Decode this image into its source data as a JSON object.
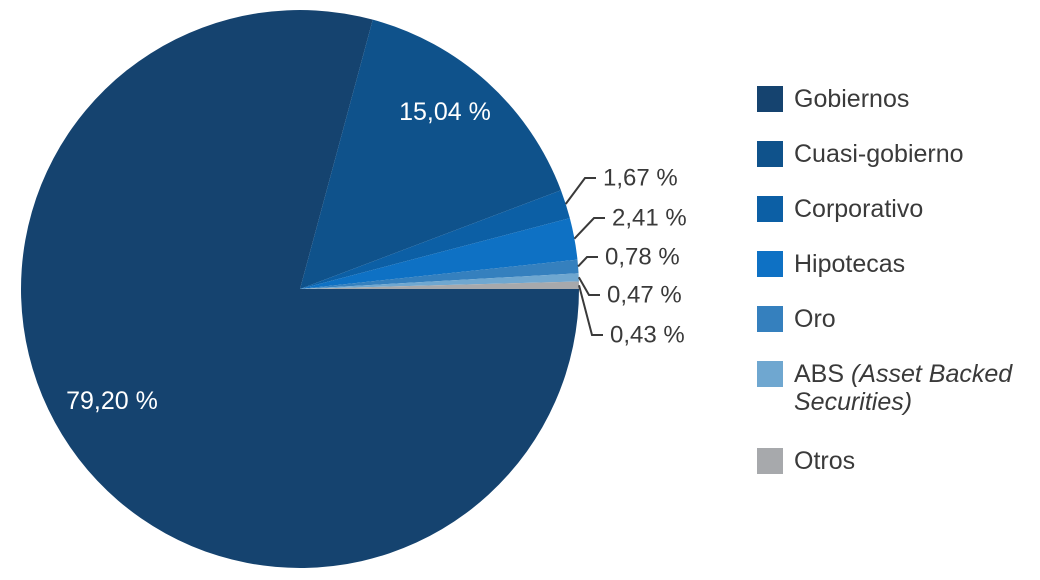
{
  "chart_data": {
    "type": "pie",
    "title": "",
    "categories": [
      "Gobiernos",
      "Cuasi-gobierno",
      "Corporativo",
      "Hipotecas",
      "Oro",
      "ABS (Asset Backed Securities)",
      "Otros"
    ],
    "values": [
      79.2,
      15.04,
      1.67,
      2.41,
      0.78,
      0.47,
      0.43
    ],
    "display_labels": [
      "79,20 %",
      "15,04 %",
      "1,67 %",
      "2,41 %",
      "0,78 %",
      "0,47 %",
      "0,43 %"
    ],
    "colors": [
      "#15436F",
      "#0F528B",
      "#0C5FA5",
      "#0E71C4",
      "#3580BE",
      "#6FA7D0",
      "#A7A9AC"
    ],
    "start_position": "3-oclock",
    "direction": "clockwise",
    "legend_position": "right",
    "inside_label_color": "#FFFFFF",
    "outside_label_color": "#3A3A3A"
  },
  "legend": {
    "items": [
      {
        "label": "Gobiernos",
        "color": "#15436F"
      },
      {
        "label": "Cuasi-gobierno",
        "color": "#0F528B"
      },
      {
        "label": "Corporativo",
        "color": "#0C5FA5"
      },
      {
        "label": "Hipotecas",
        "color": "#0E71C4"
      },
      {
        "label": "Oro",
        "color": "#3580BE"
      },
      {
        "label": "ABS (Asset Backed Securities)",
        "color": "#6FA7D0",
        "prefix": "ABS ",
        "italic_part": "(Asset Backed Securities)"
      },
      {
        "label": "Otros",
        "color": "#A7A9AC"
      }
    ]
  }
}
